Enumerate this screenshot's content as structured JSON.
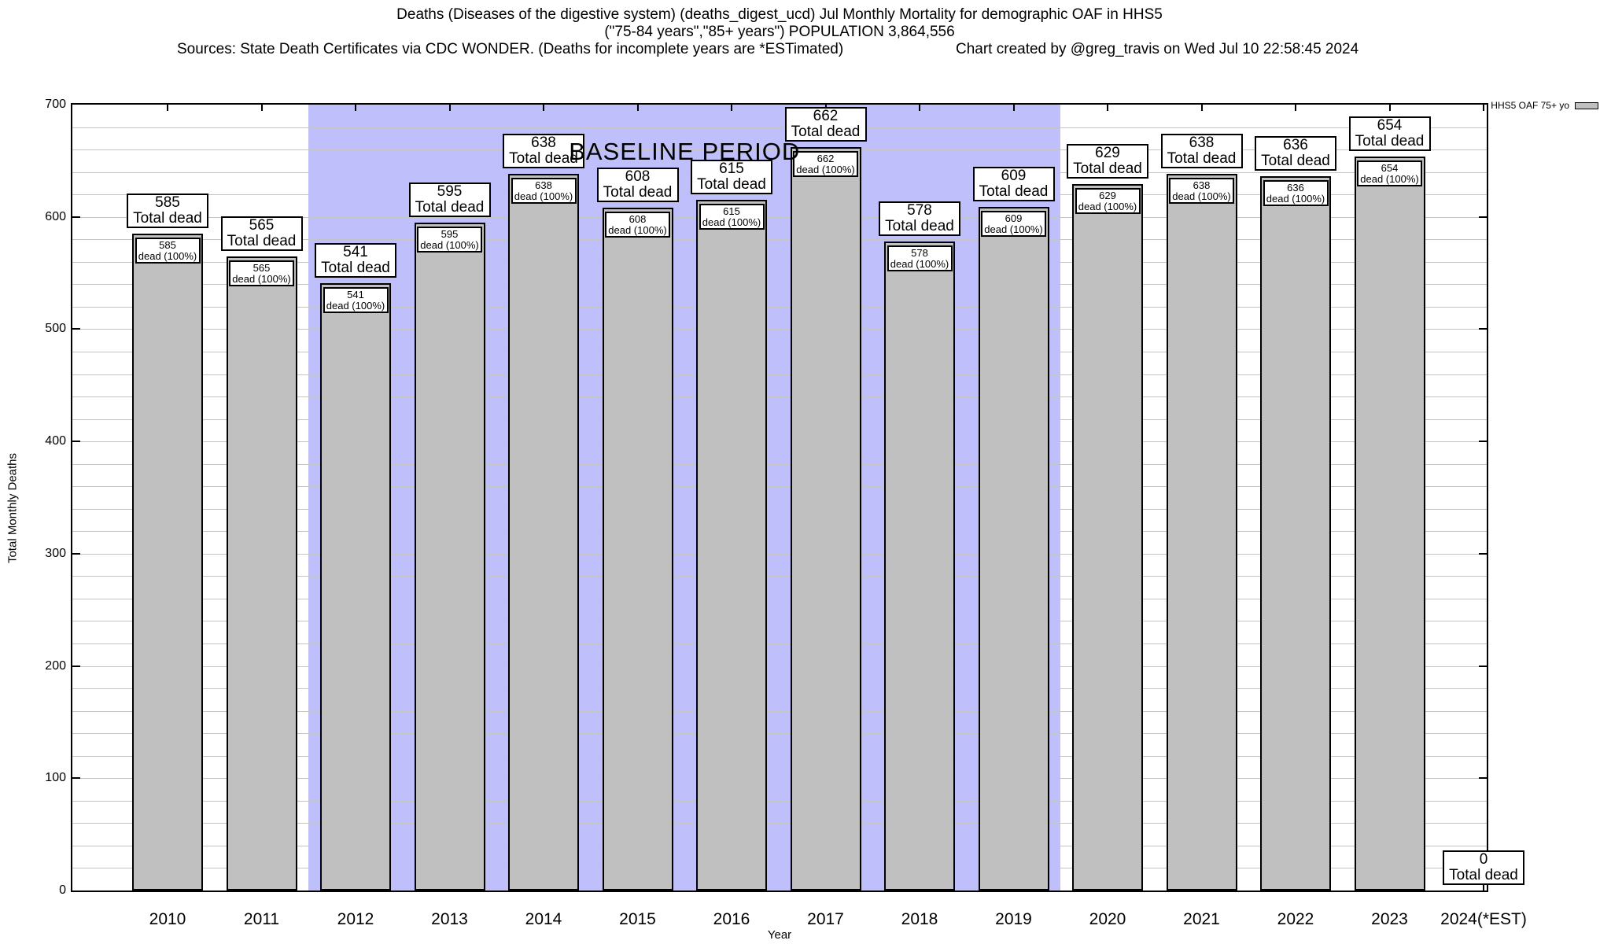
{
  "header": {
    "title_line1": "Deaths (Diseases of the digestive system) (deaths_digest_ucd) Jul Monthly Mortality for demographic OAF in HHS5",
    "title_line2": "(\"75-84 years\",\"85+ years\") POPULATION 3,864,556",
    "sources": "Sources: State Death Certificates via CDC WONDER. (Deaths for incomplete years are *ESTimated)",
    "credit": "Chart created by @greg_travis on Wed Jul 10 22:58:45 2024"
  },
  "legend": {
    "label": "HHS5 OAF 75+ yo"
  },
  "axes": {
    "y_label": "Total Monthly Deaths",
    "x_label": "Year",
    "y_ticks": [
      700,
      600,
      500,
      400,
      300,
      200,
      100,
      0
    ],
    "y_max": 700,
    "grid_step": 20
  },
  "baseline": {
    "label": "BASELINE PERIOD",
    "from_category": "2012",
    "to_category": "2019"
  },
  "bar_labels": {
    "outer_suffix": "Total dead",
    "inner_suffix": "dead (100%)"
  },
  "colors": {
    "bar_fill": "#c0c0c0",
    "bar_border": "#000000",
    "baseline_region": "#bfbffc",
    "gridline": "#c4c4c4",
    "label_box_bg": "#ffffff"
  },
  "chart_data": {
    "type": "bar",
    "categories": [
      "2010",
      "2011",
      "2012",
      "2013",
      "2014",
      "2015",
      "2016",
      "2017",
      "2018",
      "2019",
      "2020",
      "2021",
      "2022",
      "2023",
      "2024(*EST)"
    ],
    "series": [
      {
        "name": "HHS5 OAF 75+ yo",
        "values": [
          585,
          565,
          541,
          595,
          638,
          608,
          615,
          662,
          578,
          609,
          629,
          638,
          636,
          654,
          0
        ]
      }
    ],
    "title": "Deaths (Diseases of the digestive system) (deaths_digest_ucd) Jul Monthly Mortality for demographic OAF in HHS5",
    "subtitle": "(\"75-84 years\",\"85+ years\") POPULATION 3,864,556",
    "xlabel": "Year",
    "ylabel": "Total Monthly Deaths",
    "ylim": [
      0,
      700
    ],
    "grid": "horizontal, minor every 20, on",
    "legend_position": "top-right outside plot",
    "baseline_period": {
      "label": "BASELINE PERIOD",
      "from": "2012",
      "to": "2019"
    }
  }
}
